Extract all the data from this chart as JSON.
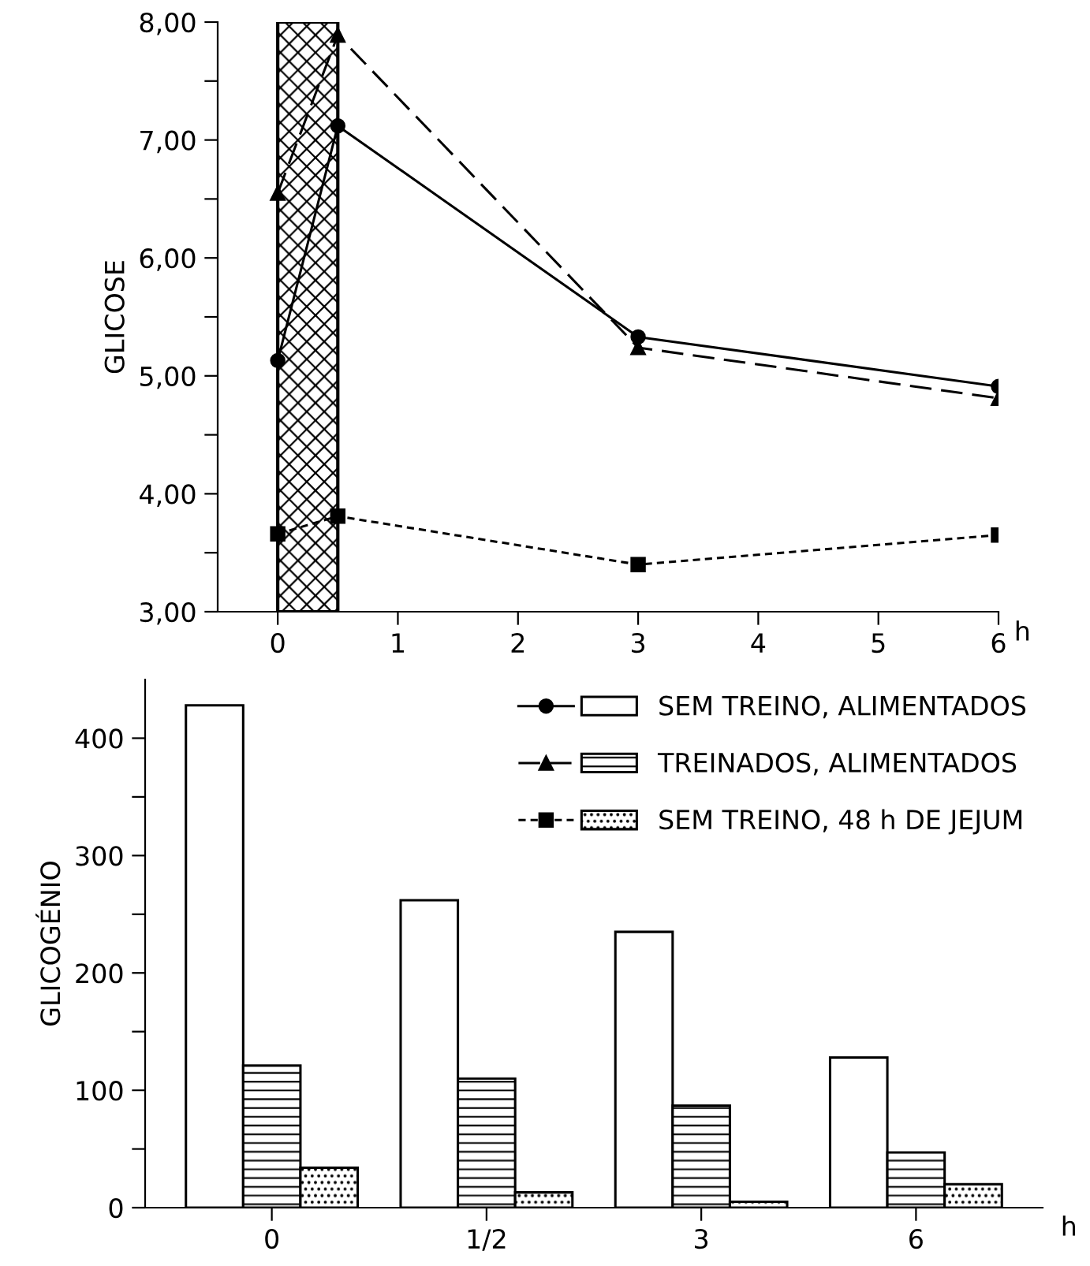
{
  "chart_data": [
    {
      "type": "line",
      "ylabel": "GLICOSE",
      "xlabel": "h",
      "x": [
        0,
        0.5,
        3,
        6
      ],
      "series": [
        {
          "color": "#000000",
          "marker": "circle",
          "line_style": "solid",
          "values": [
            5.13,
            7.12,
            5.33,
            4.91
          ]
        },
        {
          "color": "#000000",
          "marker": "triangle",
          "line_style": "dashed",
          "values": [
            6.55,
            7.89,
            5.24,
            4.81
          ]
        },
        {
          "color": "#000000",
          "marker": "square",
          "line_style": "dotted",
          "values": [
            3.66,
            3.81,
            3.4,
            3.65
          ]
        }
      ],
      "xlim": [
        -0.5,
        6
      ],
      "xticks": [
        0,
        1,
        2,
        3,
        4,
        5,
        6
      ],
      "ylim": [
        3,
        8
      ],
      "yticks": [
        {
          "value": 3,
          "label": "3,00"
        },
        {
          "value": 3.5,
          "label": null
        },
        {
          "value": 4,
          "label": "4,00"
        },
        {
          "value": 4.5,
          "label": null
        },
        {
          "value": 5,
          "label": "5,00"
        },
        {
          "value": 5.5,
          "label": null
        },
        {
          "value": 6,
          "label": "6,00"
        },
        {
          "value": 6.5,
          "label": null
        },
        {
          "value": 7,
          "label": "7,00"
        },
        {
          "value": 7.5,
          "label": null
        },
        {
          "value": 8,
          "label": "8,00"
        }
      ],
      "bands": [
        {
          "axis": "x",
          "from": 0,
          "to": 0.5,
          "label": null,
          "color": "#000000"
        }
      ],
      "grid": false
    },
    {
      "type": "bar",
      "ylabel": "GLICOGÉNIO",
      "xlabel": "h",
      "categories": [
        "0",
        "1/2",
        "3",
        "6"
      ],
      "series": [
        {
          "name": "SEM TREINO, ALIMENTADOS",
          "color": "#ffffff",
          "values": [
            428,
            262,
            235,
            128
          ]
        },
        {
          "name": "TREINADOS, ALIMENTADOS",
          "color": "#000000",
          "values": [
            121,
            110,
            87,
            47
          ]
        },
        {
          "name": "SEM TREINO, 48 h DE JEJUM",
          "color": "#000000",
          "values": [
            34,
            13,
            5,
            20
          ]
        }
      ],
      "ylim": [
        0,
        450
      ],
      "yticks": [
        0,
        {
          "value": 50,
          "label": null
        },
        100,
        {
          "value": 150,
          "label": null
        },
        200,
        {
          "value": 250,
          "label": null
        },
        300,
        {
          "value": 350,
          "label": null
        },
        400
      ],
      "grid": false,
      "legend": "top right"
    }
  ]
}
